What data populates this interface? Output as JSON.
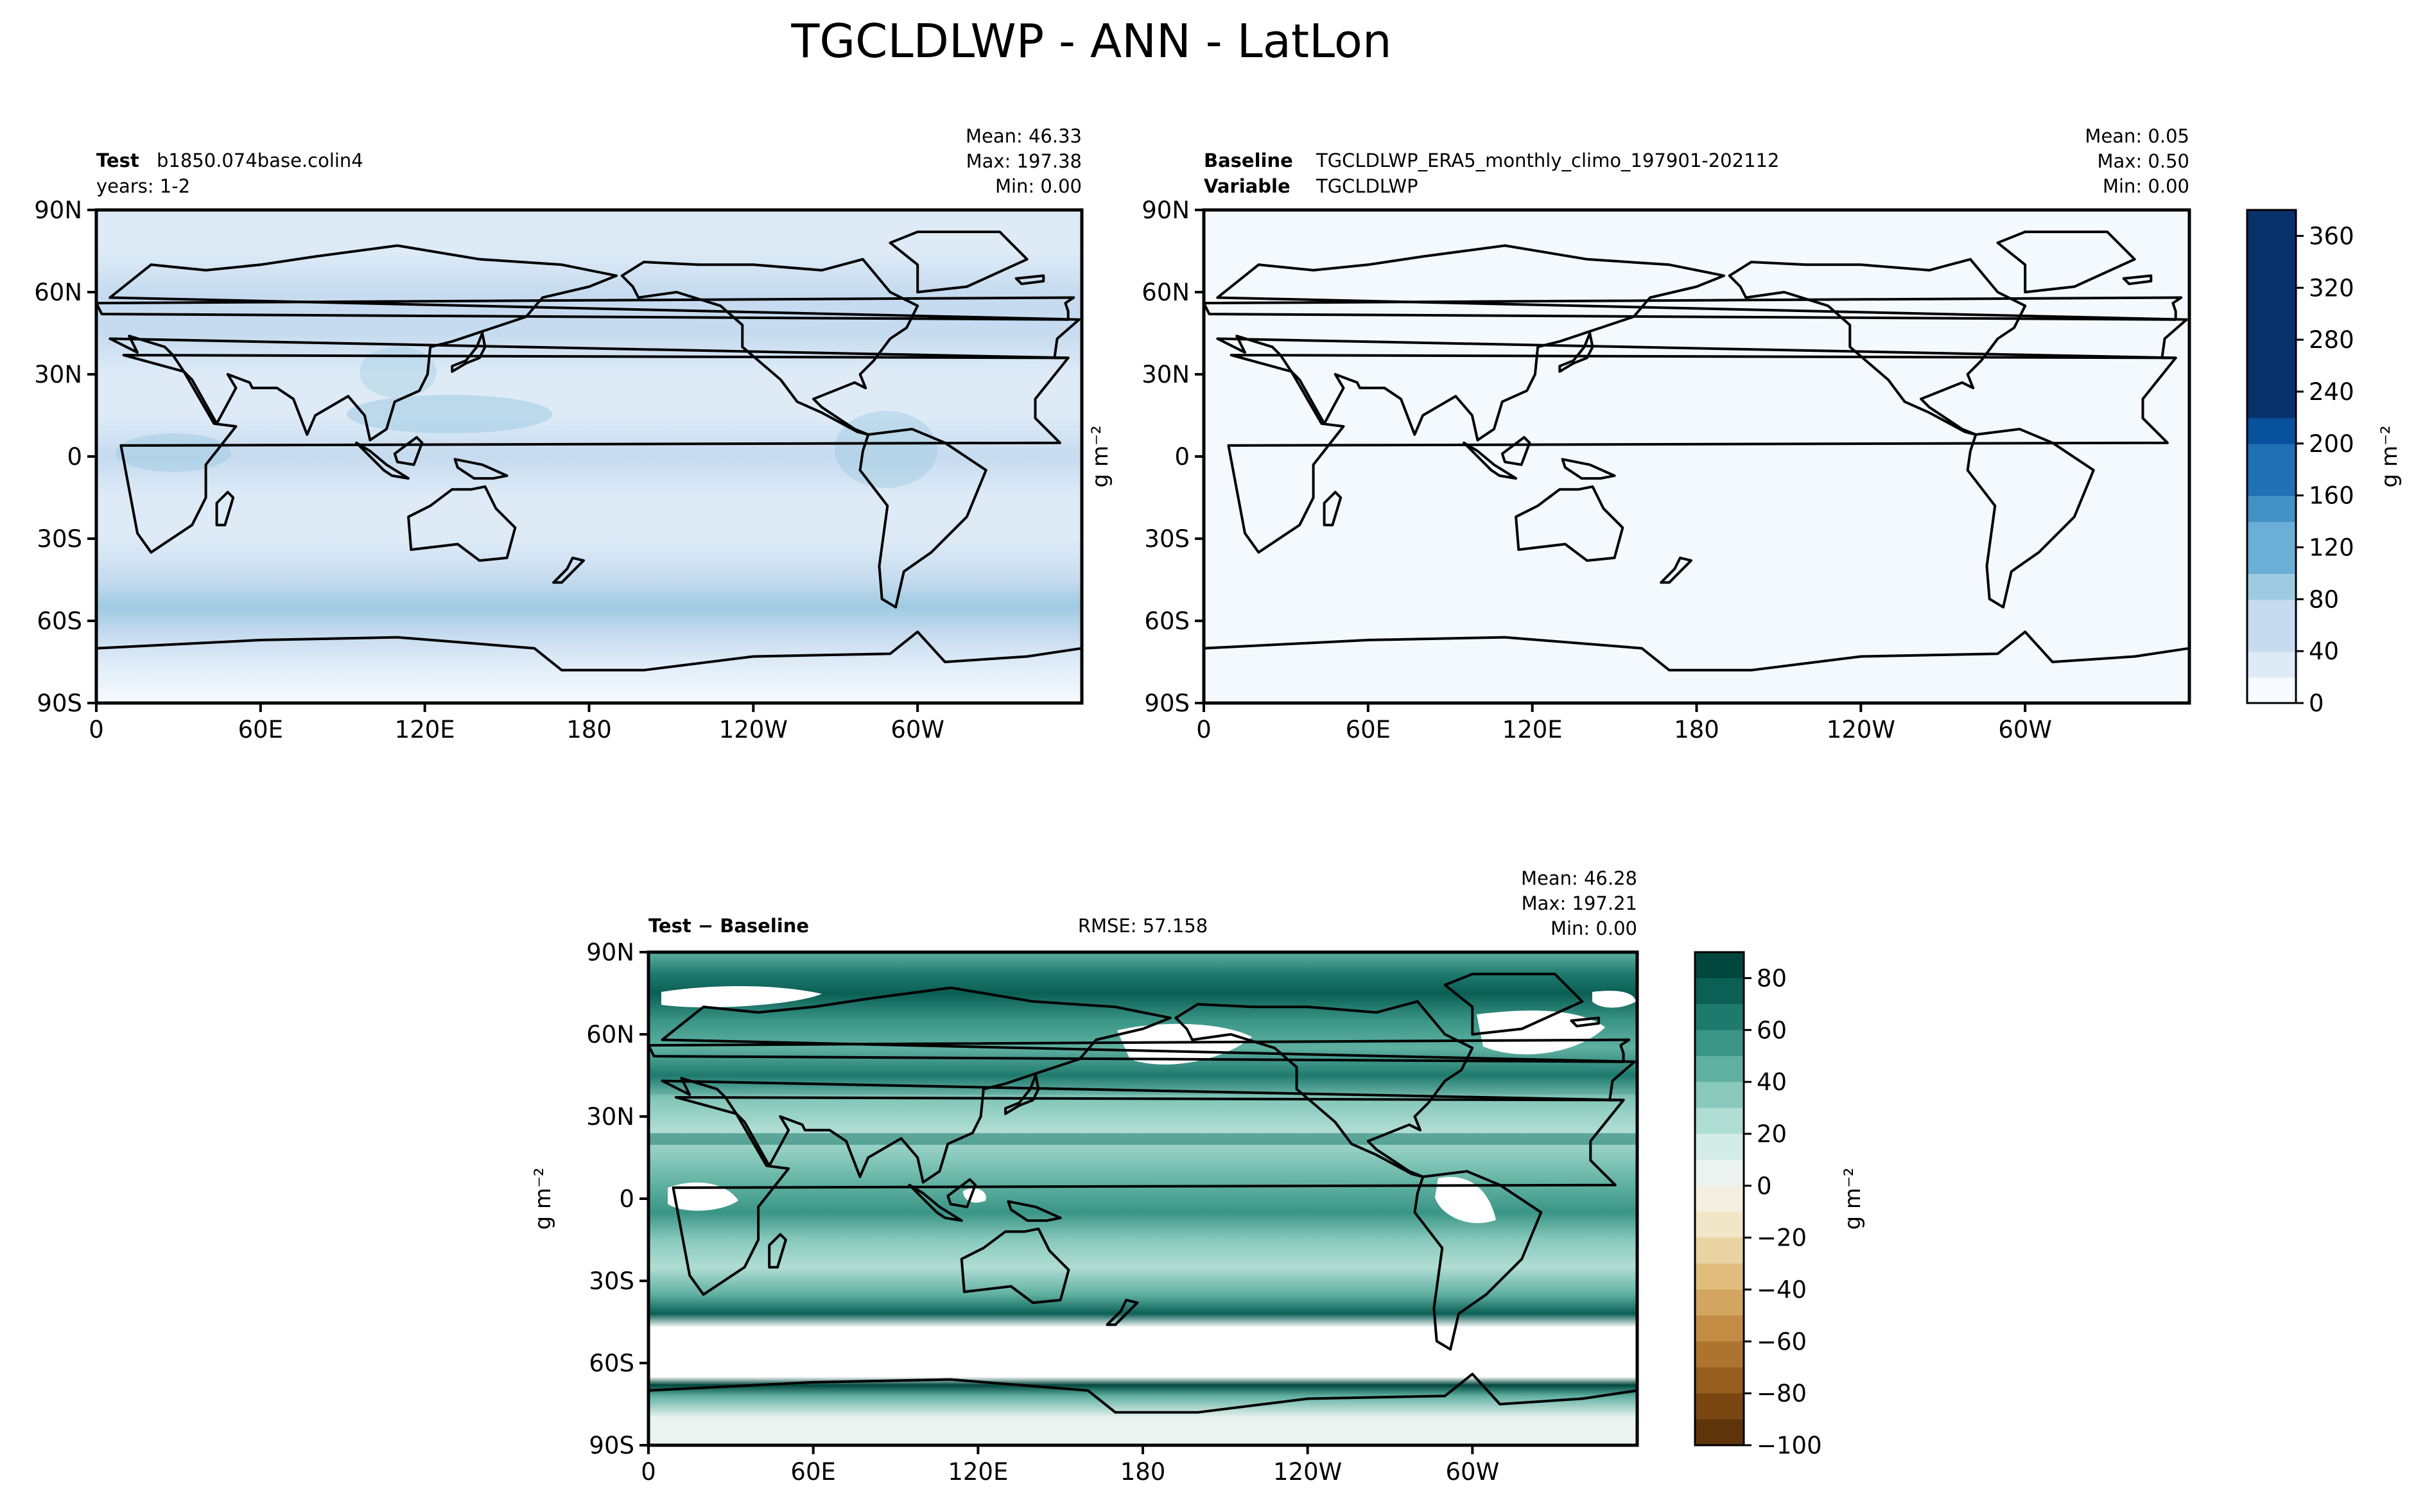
{
  "figure": {
    "title": "TGCLDLWP - ANN - LatLon"
  },
  "chart_data": [
    {
      "type": "heatmap",
      "panel": "test",
      "label_bold": "Test",
      "label_text": "b1850.074base.colin4",
      "label_line2": "years: 1-2",
      "stats": {
        "mean": "Mean: 46.33",
        "max": "Max: 197.38",
        "min": "Min:  0.00"
      },
      "units": "g m⁻²",
      "xticks": [
        "0",
        "60E",
        "120E",
        "180",
        "120W",
        "60W"
      ],
      "yticks": [
        "90N",
        "60N",
        "30N",
        "0",
        "30S",
        "60S",
        "90S"
      ],
      "ylim": [
        -90,
        90
      ],
      "xlim": [
        0,
        360
      ],
      "zonal_profile": [
        {
          "lat": 90,
          "value": 30
        },
        {
          "lat": 75,
          "value": 35
        },
        {
          "lat": 60,
          "value": 55
        },
        {
          "lat": 45,
          "value": 65
        },
        {
          "lat": 30,
          "value": 40
        },
        {
          "lat": 15,
          "value": 30
        },
        {
          "lat": 0,
          "value": 45
        },
        {
          "lat": -15,
          "value": 30
        },
        {
          "lat": -30,
          "value": 35
        },
        {
          "lat": -45,
          "value": 70
        },
        {
          "lat": -55,
          "value": 85
        },
        {
          "lat": -65,
          "value": 60
        },
        {
          "lat": -75,
          "value": 20
        },
        {
          "lat": -90,
          "value": 10
        }
      ]
    },
    {
      "type": "heatmap",
      "panel": "baseline",
      "label_bold": "Baseline",
      "label_text": "TGCLDLWP_ERA5_monthly_climo_197901-202112",
      "label_bold2": "Variable",
      "label_text2": "TGCLDLWP",
      "stats": {
        "mean": "Mean:  0.05",
        "max": "Max:  0.50",
        "min": "Min:  0.00"
      },
      "units": "g m⁻²",
      "xticks": [
        "0",
        "60E",
        "120E",
        "180",
        "120W",
        "60W"
      ],
      "yticks": [
        "90N",
        "60N",
        "30N",
        "0",
        "30S",
        "60S",
        "90S"
      ],
      "ylim": [
        -90,
        90
      ],
      "xlim": [
        0,
        360
      ],
      "colorbar": {
        "ticks": [
          "0",
          "40",
          "80",
          "120",
          "160",
          "200",
          "240",
          "280",
          "320",
          "360"
        ],
        "range": [
          0,
          380
        ],
        "colors": [
          "#f7fbff",
          "#deebf7",
          "#c6dbef",
          "#9ecae1",
          "#6baed6",
          "#4292c6",
          "#2171b5",
          "#08519c",
          "#08306b"
        ]
      }
    },
    {
      "type": "heatmap",
      "panel": "difference",
      "label_bold": "Test − Baseline",
      "rmse": "RMSE: 57.158",
      "stats": {
        "mean": "Mean: 46.28",
        "max": "Max: 197.21",
        "min": "Min:  0.00"
      },
      "units": "g m⁻²",
      "xticks": [
        "0",
        "60E",
        "120E",
        "180",
        "120W",
        "60W"
      ],
      "yticks": [
        "90N",
        "60N",
        "30N",
        "0",
        "30S",
        "60S",
        "90S"
      ],
      "ylim": [
        -90,
        90
      ],
      "xlim": [
        0,
        360
      ],
      "colorbar": {
        "ticks": [
          "80",
          "60",
          "40",
          "20",
          "0",
          "−20",
          "−40",
          "−60",
          "−80",
          "−100"
        ],
        "range": [
          -100,
          90
        ],
        "levels": [
          {
            "from": 80,
            "to": 90,
            "color": "#01473e"
          },
          {
            "from": 70,
            "to": 80,
            "color": "#0b5f55"
          },
          {
            "from": 60,
            "to": 70,
            "color": "#1f7a6e"
          },
          {
            "from": 50,
            "to": 60,
            "color": "#3a9586"
          },
          {
            "from": 40,
            "to": 50,
            "color": "#5fb0a1"
          },
          {
            "from": 30,
            "to": 40,
            "color": "#88c9bc"
          },
          {
            "from": 20,
            "to": 30,
            "color": "#b0ddd3"
          },
          {
            "from": 10,
            "to": 20,
            "color": "#d3ece6"
          },
          {
            "from": 0,
            "to": 10,
            "color": "#eaf3f0"
          },
          {
            "from": -10,
            "to": 0,
            "color": "#f4efe0"
          },
          {
            "from": -20,
            "to": -10,
            "color": "#f2e6c8"
          },
          {
            "from": -30,
            "to": -20,
            "color": "#ead3a3"
          },
          {
            "from": -40,
            "to": -30,
            "color": "#e0bd7d"
          },
          {
            "from": -50,
            "to": -40,
            "color": "#d2a660"
          },
          {
            "from": -60,
            "to": -50,
            "color": "#c38c45"
          },
          {
            "from": -70,
            "to": -60,
            "color": "#ad742f"
          },
          {
            "from": -80,
            "to": -70,
            "color": "#955d1e"
          },
          {
            "from": -90,
            "to": -80,
            "color": "#7a4712"
          },
          {
            "from": -100,
            "to": -90,
            "color": "#5e340a"
          }
        ]
      },
      "zonal_profile": [
        {
          "lat": 90,
          "value": 40
        },
        {
          "lat": 82,
          "value": 60
        },
        {
          "lat": 75,
          "value": 70
        },
        {
          "lat": 65,
          "value": 55
        },
        {
          "lat": 55,
          "value": 45
        },
        {
          "lat": 45,
          "value": 60
        },
        {
          "lat": 35,
          "value": 35
        },
        {
          "lat": 25,
          "value": 20
        },
        {
          "lat": 15,
          "value": 30
        },
        {
          "lat": 5,
          "value": 45
        },
        {
          "lat": -5,
          "value": 50
        },
        {
          "lat": -15,
          "value": 30
        },
        {
          "lat": -25,
          "value": 25
        },
        {
          "lat": -35,
          "value": 45
        },
        {
          "lat": -42,
          "value": 75
        },
        {
          "lat": -47,
          "value": 0
        },
        {
          "lat": -65,
          "value": 0
        },
        {
          "lat": -68,
          "value": 80
        },
        {
          "lat": -72,
          "value": 40
        },
        {
          "lat": -80,
          "value": 8
        },
        {
          "lat": -90,
          "value": 5
        }
      ]
    }
  ]
}
